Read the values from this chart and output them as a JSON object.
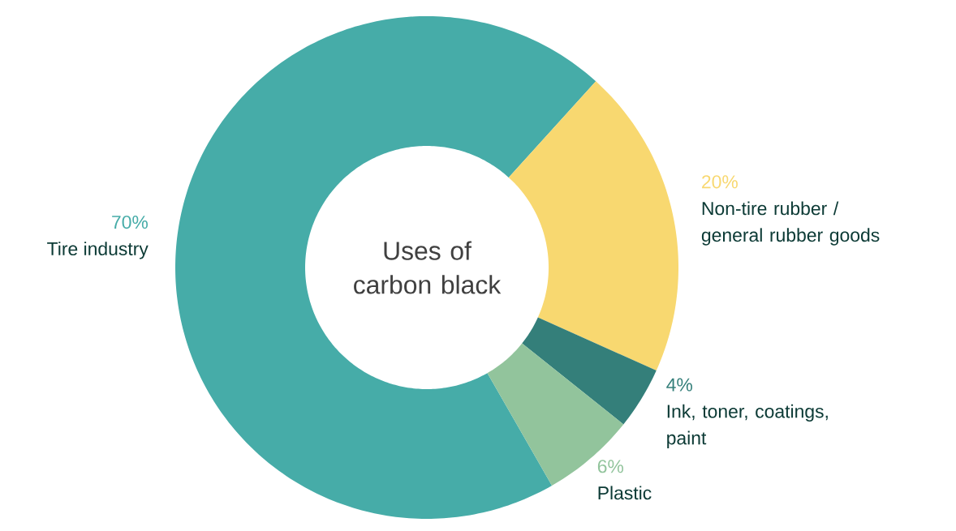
{
  "chart_data": {
    "type": "donut",
    "title": "Uses of carbon black",
    "categories": [
      "Tire industry",
      "Non-tire rubber / general rubber goods",
      "Ink, toner, coatings, paint",
      "Plastic"
    ],
    "values": [
      70,
      20,
      4,
      6
    ],
    "value_labels": [
      "70%",
      "20%",
      "4%",
      "6%"
    ],
    "colors": [
      "#46aca8",
      "#f8d870",
      "#347f7a",
      "#92c49c"
    ]
  }
}
